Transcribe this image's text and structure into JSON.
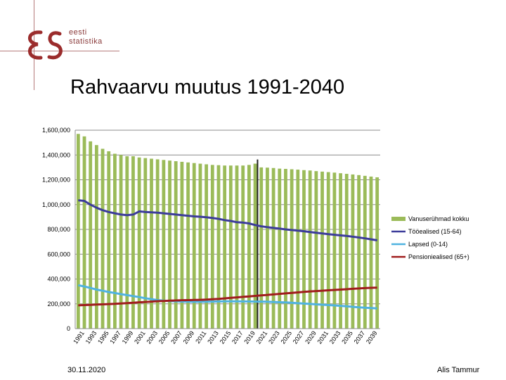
{
  "logo": {
    "mark_color": "#9b2c2c",
    "line1": "eesti",
    "line2": "statistika"
  },
  "title": "Rahvaarvu muutus 1991-2040",
  "footer": {
    "date": "30.11.2020",
    "author": "Alis Tammur"
  },
  "chart_data": {
    "type": "bar",
    "title": "Rahvaarvu muutus 1991-2040",
    "xlabel": "",
    "ylabel": "",
    "ylim": [
      0,
      1600000
    ],
    "yticks": [
      {
        "value": 0,
        "label": "0"
      },
      {
        "value": 200000,
        "label": "200,000"
      },
      {
        "value": 400000,
        "label": "400,000"
      },
      {
        "value": 600000,
        "label": "600,000"
      },
      {
        "value": 800000,
        "label": "800,000"
      },
      {
        "value": 1000000,
        "label": "1,000,000"
      },
      {
        "value": 1200000,
        "label": "1,200,000"
      },
      {
        "value": 1400000,
        "label": "1,400,000"
      },
      {
        "value": 1600000,
        "label": "1,600,000"
      }
    ],
    "grid": true,
    "legend_position": "right",
    "x_tick_labels": [
      "1991",
      "1993",
      "1995",
      "1997",
      "1999",
      "2001",
      "2003",
      "2005",
      "2007",
      "2009",
      "2011",
      "2013",
      "2015",
      "2017",
      "2019",
      "2021",
      "2023",
      "2025",
      "2027",
      "2029",
      "2031",
      "2033",
      "2035",
      "2037",
      "2039"
    ],
    "marker_year": 2020,
    "x": [
      1991,
      1992,
      1993,
      1994,
      1995,
      1996,
      1997,
      1998,
      1999,
      2000,
      2001,
      2002,
      2003,
      2004,
      2005,
      2006,
      2007,
      2008,
      2009,
      2010,
      2011,
      2012,
      2013,
      2014,
      2015,
      2016,
      2017,
      2018,
      2019,
      2020,
      2021,
      2022,
      2023,
      2024,
      2025,
      2026,
      2027,
      2028,
      2029,
      2030,
      2031,
      2032,
      2033,
      2034,
      2035,
      2036,
      2037,
      2038,
      2039,
      2040
    ],
    "series": [
      {
        "name": "Vanuserühmad kokku",
        "kind": "bar",
        "color": "#9bbb59",
        "values": [
          1570000,
          1550000,
          1510000,
          1480000,
          1450000,
          1430000,
          1410000,
          1400000,
          1390000,
          1390000,
          1380000,
          1375000,
          1370000,
          1365000,
          1360000,
          1355000,
          1350000,
          1345000,
          1340000,
          1335000,
          1330000,
          1325000,
          1320000,
          1318000,
          1315000,
          1315000,
          1315000,
          1315000,
          1320000,
          1330000,
          1300000,
          1298000,
          1295000,
          1290000,
          1288000,
          1285000,
          1282000,
          1278000,
          1275000,
          1270000,
          1266000,
          1262000,
          1258000,
          1253000,
          1248000,
          1243000,
          1238000,
          1232000,
          1226000,
          1220000
        ]
      },
      {
        "name": "Tööealised (15-64)",
        "kind": "line",
        "color": "#3c3c9a",
        "values": [
          1035000,
          1030000,
          1000000,
          975000,
          955000,
          940000,
          930000,
          920000,
          915000,
          920000,
          945000,
          940000,
          938000,
          935000,
          930000,
          925000,
          920000,
          915000,
          910000,
          905000,
          902000,
          898000,
          892000,
          885000,
          875000,
          868000,
          858000,
          855000,
          848000,
          835000,
          825000,
          818000,
          812000,
          806000,
          800000,
          795000,
          790000,
          785000,
          779000,
          773000,
          767000,
          762000,
          757000,
          752000,
          747000,
          741000,
          735000,
          728000,
          720000,
          712000
        ]
      },
      {
        "name": "Lapsed (0-14)",
        "kind": "line",
        "color": "#4fb3e0",
        "values": [
          350000,
          340000,
          328000,
          315000,
          305000,
          295000,
          287000,
          278000,
          270000,
          262000,
          254000,
          245000,
          238000,
          230000,
          225000,
          222000,
          220000,
          218000,
          217000,
          216000,
          216000,
          217000,
          218000,
          219000,
          220000,
          220000,
          220000,
          219000,
          219000,
          218000,
          218000,
          217000,
          215000,
          213000,
          211000,
          208000,
          205000,
          202000,
          199000,
          196000,
          193000,
          190000,
          187000,
          184000,
          180000,
          176000,
          172000,
          169000,
          166000,
          163000
        ]
      },
      {
        "name": "Pensioniealised (65+)",
        "kind": "line",
        "color": "#a01c1c",
        "values": [
          188000,
          190000,
          192000,
          194000,
          196000,
          198000,
          200000,
          203000,
          206000,
          209000,
          212000,
          215000,
          218000,
          221000,
          223000,
          225000,
          227000,
          229000,
          230000,
          231000,
          232000,
          234000,
          237000,
          240000,
          244000,
          248000,
          252000,
          256000,
          260000,
          264000,
          268000,
          272000,
          276000,
          280000,
          284000,
          288000,
          292000,
          296000,
          300000,
          303000,
          306000,
          309000,
          312000,
          315000,
          318000,
          321000,
          324000,
          327000,
          329000,
          331000
        ]
      }
    ]
  }
}
